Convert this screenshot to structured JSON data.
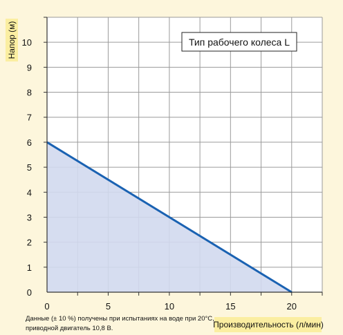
{
  "chart_data": {
    "type": "area",
    "title": "",
    "xlabel": "Производительность (л/мин)",
    "ylabel": "Напор (м)",
    "xlim": [
      0,
      22.5
    ],
    "ylim": [
      0,
      11
    ],
    "x_ticks": [
      0,
      5,
      10,
      15,
      20
    ],
    "y_ticks": [
      0,
      1,
      2,
      3,
      4,
      5,
      6,
      7,
      8,
      9,
      10
    ],
    "grid": true,
    "annotation": "Тип рабочего колеса L",
    "series": [
      {
        "x": [
          0,
          20
        ],
        "y": [
          6,
          0
        ]
      }
    ],
    "colors": {
      "line": "#1a62b2",
      "fill": "#d2d9ee",
      "label_bg": "#fbeea1",
      "background": "#fdf6dc"
    }
  },
  "footnote": {
    "line1": "Данные (± 10 %) получены при испытаниях на воде при 20°C,",
    "line2": "приводной двигатель 10,8 В."
  }
}
